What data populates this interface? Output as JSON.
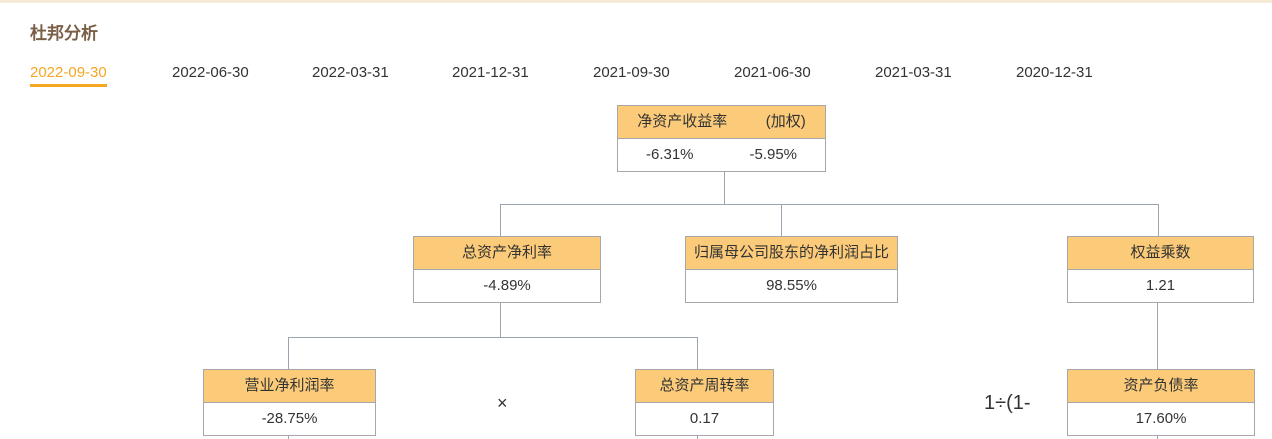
{
  "title": "杜邦分析",
  "tabs": [
    "2022-09-30",
    "2022-06-30",
    "2022-03-31",
    "2021-12-31",
    "2021-09-30",
    "2021-06-30",
    "2021-03-31",
    "2020-12-31"
  ],
  "active_tab": "2022-09-30",
  "roe": {
    "label": "净资产收益率",
    "label2": "(加权)",
    "value": "-6.31%",
    "value2": "-5.95%"
  },
  "roa": {
    "label": "总资产净利率",
    "value": "-4.89%"
  },
  "parent_share": {
    "label": "归属母公司股东的净利润占比",
    "value": "98.55%"
  },
  "equity_multiplier": {
    "label": "权益乘数",
    "value": "1.21"
  },
  "net_margin": {
    "label": "营业净利润率",
    "value": "-28.75%"
  },
  "asset_turnover": {
    "label": "总资产周转率",
    "value": "0.17"
  },
  "debt_ratio": {
    "label": "资产负债率",
    "value": "17.60%"
  },
  "ops": {
    "multiply": "×",
    "inverse": "1÷(1-"
  },
  "colors": {
    "accent": "#f5a623",
    "header_fill": "#fbcb7a",
    "title": "#7a5f47"
  }
}
